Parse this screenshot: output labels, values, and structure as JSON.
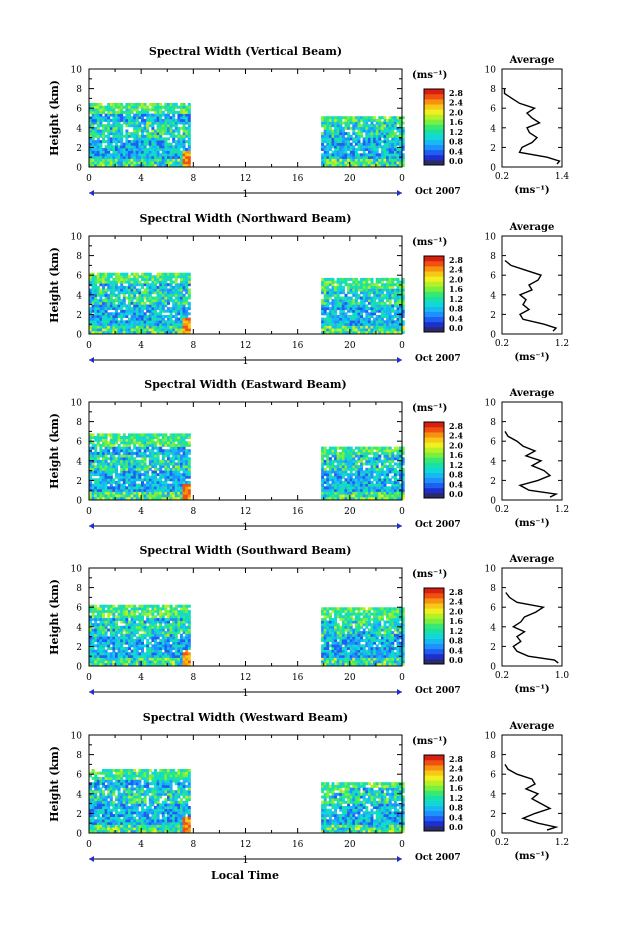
{
  "figure": {
    "xlabel": "Local Time",
    "date_label": "Oct 2007",
    "day_label": "1",
    "ylabel": "Height (km)",
    "colorbar_unit": "(ms⁻¹)",
    "avg_title": "Average",
    "avg_xlabel": "(ms⁻¹)"
  },
  "colorbar": {
    "ticks": [
      "2.8",
      "2.4",
      "2.0",
      "1.6",
      "1.2",
      "0.8",
      "0.4",
      "0.0"
    ],
    "colors": [
      "#2b2b6b",
      "#1e2fd0",
      "#1e5ef0",
      "#1e90ff",
      "#18b8f0",
      "#10d8d8",
      "#18e0a8",
      "#38e870",
      "#78f040",
      "#b8f028",
      "#f0f020",
      "#f8c818",
      "#f89010",
      "#f05010",
      "#d82010"
    ]
  },
  "chart_data": [
    {
      "type": "heatmap",
      "title": "Spectral Width (Vertical Beam)",
      "x_ticks": [
        "0",
        "4",
        "8",
        "12",
        "16",
        "20",
        "0"
      ],
      "y_ticks": [
        "0",
        "2",
        "4",
        "6",
        "8",
        "10"
      ],
      "xlim": [
        0,
        24
      ],
      "ylim": [
        0,
        10
      ],
      "data_segments": [
        {
          "from": 0,
          "to": 7.7
        },
        {
          "from": 17.8,
          "to": 24
        }
      ],
      "cloud_top_km": [
        6.5,
        5.0
      ],
      "avg_profile": {
        "xlim": [
          0.2,
          1.4
        ],
        "x_ticks": [
          "0.2",
          "1.4"
        ],
        "y_ticks": [
          "0",
          "2",
          "4",
          "6",
          "8",
          "10"
        ],
        "heights": [
          0.3,
          0.6,
          1.0,
          1.5,
          2.0,
          2.5,
          3.0,
          3.5,
          4.0,
          4.5,
          5.0,
          5.5,
          6.0,
          6.5,
          7.0,
          7.5,
          8.0
        ],
        "values": [
          1.3,
          1.35,
          1.1,
          0.55,
          0.6,
          0.8,
          0.9,
          0.75,
          0.7,
          0.95,
          0.8,
          0.7,
          0.85,
          0.55,
          0.4,
          0.25,
          0.25
        ]
      }
    },
    {
      "type": "heatmap",
      "title": "Spectral Width (Northward Beam)",
      "x_ticks": [
        "0",
        "4",
        "8",
        "12",
        "16",
        "20",
        "0"
      ],
      "y_ticks": [
        "0",
        "2",
        "4",
        "6",
        "8",
        "10"
      ],
      "xlim": [
        0,
        24
      ],
      "ylim": [
        0,
        10
      ],
      "data_segments": [
        {
          "from": 0,
          "to": 7.7
        },
        {
          "from": 17.8,
          "to": 24
        }
      ],
      "cloud_top_km": [
        6.2,
        5.5
      ],
      "avg_profile": {
        "xlim": [
          0.2,
          1.2
        ],
        "x_ticks": [
          "0.2",
          "1.2"
        ],
        "y_ticks": [
          "0",
          "2",
          "4",
          "6",
          "8",
          "10"
        ],
        "heights": [
          0.3,
          0.6,
          1.0,
          1.5,
          2.0,
          2.5,
          3.0,
          3.5,
          4.0,
          4.5,
          5.0,
          5.5,
          6.0,
          6.5,
          7.0,
          7.5
        ],
        "values": [
          1.05,
          1.1,
          0.9,
          0.55,
          0.5,
          0.65,
          0.55,
          0.6,
          0.5,
          0.7,
          0.65,
          0.8,
          0.85,
          0.6,
          0.35,
          0.25
        ]
      }
    },
    {
      "type": "heatmap",
      "title": "Spectral Width (Eastward Beam)",
      "x_ticks": [
        "0",
        "4",
        "8",
        "12",
        "16",
        "20",
        "0"
      ],
      "y_ticks": [
        "0",
        "2",
        "4",
        "6",
        "8",
        "10"
      ],
      "xlim": [
        0,
        24
      ],
      "ylim": [
        0,
        10
      ],
      "data_segments": [
        {
          "from": 0,
          "to": 7.7
        },
        {
          "from": 17.8,
          "to": 24
        }
      ],
      "cloud_top_km": [
        6.6,
        5.2
      ],
      "avg_profile": {
        "xlim": [
          0.2,
          1.2
        ],
        "x_ticks": [
          "0.2",
          "1.2"
        ],
        "y_ticks": [
          "0",
          "2",
          "4",
          "6",
          "8",
          "10"
        ],
        "heights": [
          0.3,
          0.6,
          1.0,
          1.5,
          2.0,
          2.5,
          3.0,
          3.5,
          4.0,
          4.5,
          5.0,
          5.5,
          6.0,
          6.5,
          7.0
        ],
        "values": [
          1.0,
          1.1,
          0.65,
          0.5,
          0.8,
          1.0,
          0.9,
          0.7,
          0.85,
          0.6,
          0.75,
          0.55,
          0.45,
          0.3,
          0.25
        ]
      }
    },
    {
      "type": "heatmap",
      "title": "Spectral Width (Southward Beam)",
      "x_ticks": [
        "0",
        "4",
        "8",
        "12",
        "16",
        "20",
        "0"
      ],
      "y_ticks": [
        "0",
        "2",
        "4",
        "6",
        "8",
        "10"
      ],
      "xlim": [
        0,
        24
      ],
      "ylim": [
        0,
        10
      ],
      "data_segments": [
        {
          "from": 0,
          "to": 7.7
        },
        {
          "from": 17.8,
          "to": 24
        }
      ],
      "cloud_top_km": [
        6.0,
        5.8
      ],
      "avg_profile": {
        "xlim": [
          0.2,
          1.0
        ],
        "x_ticks": [
          "0.2",
          "1.0"
        ],
        "y_ticks": [
          "0",
          "2",
          "4",
          "6",
          "8",
          "10"
        ],
        "heights": [
          0.3,
          0.6,
          1.0,
          1.5,
          2.0,
          2.5,
          3.0,
          3.5,
          4.0,
          4.5,
          5.0,
          5.5,
          6.0,
          6.5,
          7.0,
          7.5
        ],
        "values": [
          0.95,
          0.9,
          0.55,
          0.4,
          0.35,
          0.45,
          0.4,
          0.5,
          0.35,
          0.45,
          0.5,
          0.65,
          0.75,
          0.4,
          0.3,
          0.25
        ]
      }
    },
    {
      "type": "heatmap",
      "title": "Spectral Width (Westward Beam)",
      "x_ticks": [
        "0",
        "4",
        "8",
        "12",
        "16",
        "20",
        "0"
      ],
      "y_ticks": [
        "0",
        "2",
        "4",
        "6",
        "8",
        "10"
      ],
      "xlim": [
        0,
        24
      ],
      "ylim": [
        0,
        10
      ],
      "data_segments": [
        {
          "from": 0,
          "to": 7.7
        },
        {
          "from": 17.8,
          "to": 24
        }
      ],
      "cloud_top_km": [
        6.5,
        5.0
      ],
      "avg_profile": {
        "xlim": [
          0.2,
          1.2
        ],
        "x_ticks": [
          "0.2",
          "1.2"
        ],
        "y_ticks": [
          "0",
          "2",
          "4",
          "6",
          "8",
          "10"
        ],
        "heights": [
          0.3,
          0.6,
          1.0,
          1.5,
          2.0,
          2.5,
          3.0,
          3.5,
          4.0,
          4.5,
          5.0,
          5.5,
          6.0,
          6.5,
          7.0
        ],
        "values": [
          0.95,
          1.1,
          0.8,
          0.55,
          0.75,
          1.0,
          0.85,
          0.7,
          0.8,
          0.6,
          0.75,
          0.7,
          0.45,
          0.3,
          0.25
        ]
      }
    }
  ]
}
